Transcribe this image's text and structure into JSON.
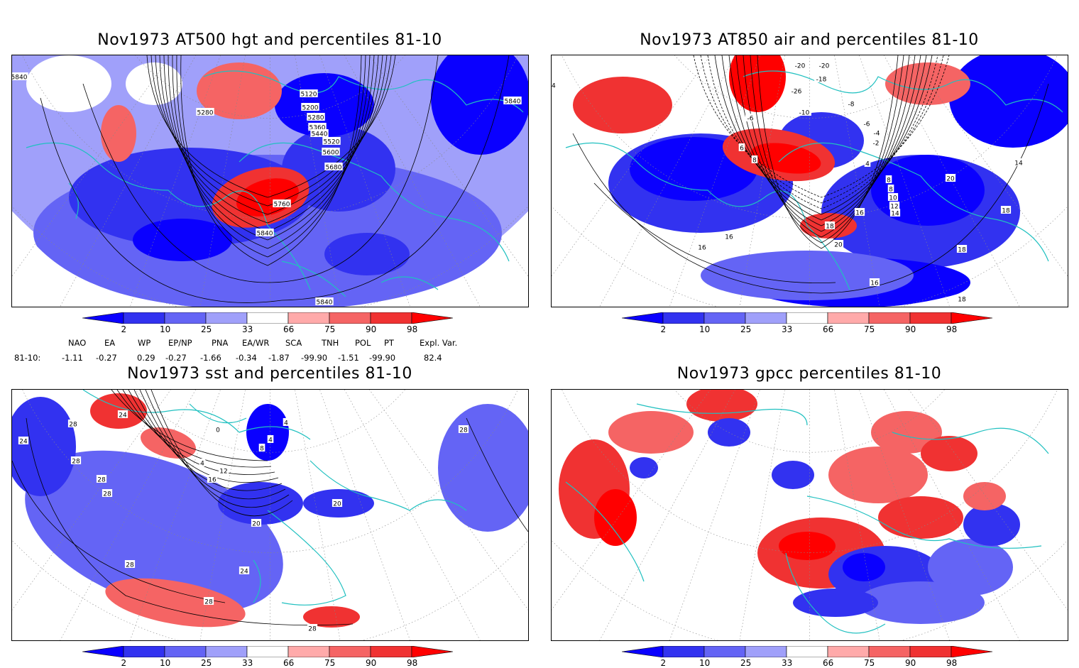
{
  "panels": {
    "hgt": {
      "title": "Nov1973 AT500 hgt and percentiles 81-10",
      "contour_labels": [
        "5840",
        "5280",
        "5120",
        "5200",
        "5280",
        "5360",
        "5440",
        "5520",
        "5600",
        "5680",
        "5760",
        "5840",
        "5840",
        "5840"
      ]
    },
    "air": {
      "title": "Nov1973 AT850 air and percentiles 81-10",
      "contour_labels": [
        "-20",
        "-20",
        "-18",
        "-26",
        "-8",
        "-10",
        "-6",
        "-6",
        "-4",
        "-2",
        "4",
        "6",
        "8",
        "8",
        "8",
        "10",
        "12",
        "14",
        "16",
        "16",
        "16",
        "16",
        "18",
        "18",
        "18",
        "18",
        "20",
        "20",
        "14",
        "14"
      ]
    },
    "sst": {
      "title": "Nov1973 sst and percentiles 81-10",
      "contour_labels": [
        "24",
        "28",
        "24",
        "28",
        "28",
        "28",
        "0",
        "4",
        "4",
        "8",
        "4",
        "12",
        "16",
        "20",
        "20",
        "24",
        "28",
        "28",
        "28",
        "28"
      ]
    },
    "gpcc": {
      "title": "Nov1973 gpcc percentiles 81-10"
    }
  },
  "colorbar": {
    "ticks": [
      "2",
      "10",
      "25",
      "33",
      "66",
      "75",
      "90",
      "98"
    ],
    "colors": [
      "#0a00ff",
      "#3232f0",
      "#6464f5",
      "#a0a0fa",
      "#ffffff",
      "#ffaaaa",
      "#f56464",
      "#f03232",
      "#ff0000"
    ]
  },
  "indices": {
    "headers": [
      "NAO",
      "EA",
      "WP",
      "EP/NP",
      "PNA",
      "EA/WR",
      "SCA",
      "TNH",
      "POL",
      "PT",
      "Expl. Var."
    ],
    "row_label": "81-10:",
    "values": [
      "-1.11",
      "-0.27",
      "0.29",
      "-0.27",
      "-1.66",
      "-0.34",
      "-1.87",
      "-99.90",
      "-1.51",
      "-99.90",
      "82.4"
    ]
  },
  "colors": {
    "coastline": "#20c0c0",
    "contour": "#000000",
    "grid": "#888888"
  }
}
